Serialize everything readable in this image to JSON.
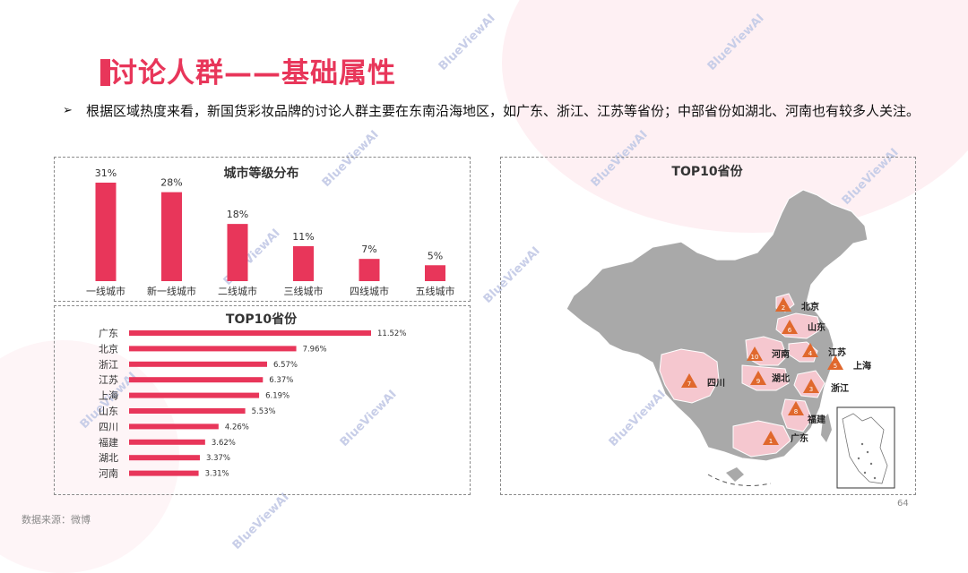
{
  "title": "讨论人群——基础属性",
  "bullet_text": "根据区域热度来看，新国货彩妆品牌的讨论人群主要在东南沿海地区，如广东、浙江、江苏等省份；中部省份如湖北、河南也有较多人关注。",
  "bullet_symbol": "➢",
  "source": "数据来源：微博",
  "page_number": "64",
  "watermark": "BlueViewAI",
  "colors": {
    "accent": "#e8365a",
    "map_base": "#a9a9a9",
    "map_highlight": "#f5c7cf",
    "marker": "#e0682d"
  },
  "chart_data": [
    {
      "type": "bar",
      "title": "城市等级分布",
      "categories": [
        "一线城市",
        "新一线城市",
        "二线城市",
        "三线城市",
        "四线城市",
        "五线城市"
      ],
      "values": [
        31,
        28,
        18,
        11,
        7,
        5
      ],
      "value_labels": [
        "31%",
        "28%",
        "18%",
        "11%",
        "7%",
        "5%"
      ],
      "unit": "%"
    },
    {
      "type": "bar",
      "orientation": "horizontal",
      "title": "TOP10省份",
      "categories": [
        "广东",
        "北京",
        "浙江",
        "江苏",
        "上海",
        "山东",
        "四川",
        "福建",
        "湖北",
        "河南"
      ],
      "values": [
        11.52,
        7.96,
        6.57,
        6.37,
        6.19,
        5.53,
        4.26,
        3.62,
        3.37,
        3.31
      ],
      "value_labels": [
        "11.52%",
        "7.96%",
        "6.57%",
        "6.37%",
        "6.19%",
        "5.53%",
        "4.26%",
        "3.62%",
        "3.37%",
        "3.31%"
      ],
      "unit": "%"
    }
  ],
  "map": {
    "title": "TOP10省份",
    "markers": [
      {
        "rank": "1",
        "name": "广东"
      },
      {
        "rank": "2",
        "name": "北京"
      },
      {
        "rank": "3",
        "name": "浙江"
      },
      {
        "rank": "4",
        "name": "江苏"
      },
      {
        "rank": "5",
        "name": "上海"
      },
      {
        "rank": "6",
        "name": "山东"
      },
      {
        "rank": "7",
        "name": "四川"
      },
      {
        "rank": "8",
        "name": "福建"
      },
      {
        "rank": "9",
        "name": "湖北"
      },
      {
        "rank": "10",
        "name": "河南"
      }
    ]
  }
}
